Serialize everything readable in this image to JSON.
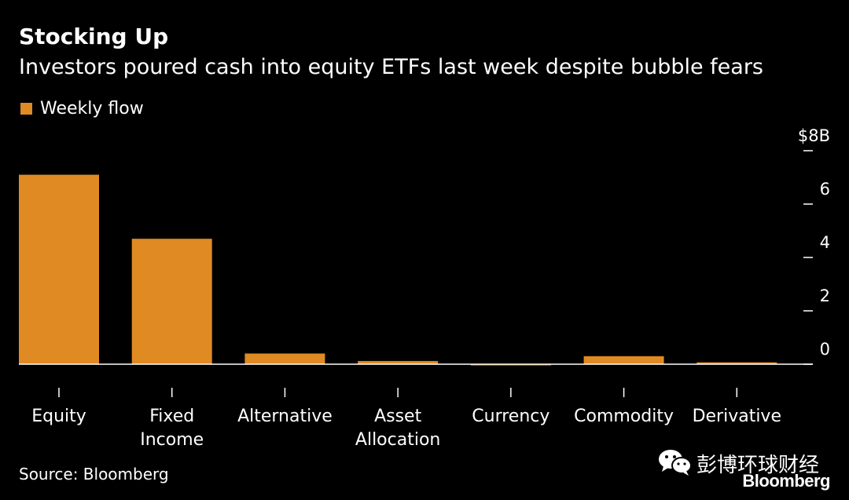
{
  "header": {
    "title": "Stocking Up",
    "subtitle": "Investors poured cash into equity ETFs last week despite bubble fears"
  },
  "legend": {
    "label": "Weekly flow",
    "color": "#E08A24"
  },
  "footer": {
    "source": "Source: Bloomberg",
    "logo_cn": "彭博环球财经",
    "logo_en": "Bloomberg",
    "wechat_icon": "wechat-icon"
  },
  "chart_data": {
    "type": "bar",
    "title": "Stocking Up",
    "subtitle": "Investors poured cash into equity ETFs last week despite bubble fears",
    "categories": [
      "Equity",
      "Fixed Income",
      "Alternative",
      "Asset Allocation",
      "Currency",
      "Commodity",
      "Derivative"
    ],
    "category_label_lines": [
      [
        "Equity"
      ],
      [
        "Fixed",
        "Income"
      ],
      [
        "Alternative"
      ],
      [
        "Asset",
        "Allocation"
      ],
      [
        "Currency"
      ],
      [
        "Commodity"
      ],
      [
        "Derivative"
      ]
    ],
    "series": [
      {
        "name": "Weekly flow",
        "color": "#E08A24",
        "values": [
          7.1,
          4.7,
          0.4,
          0.12,
          -0.03,
          0.3,
          0.07
        ]
      }
    ],
    "ylim": [
      0,
      8
    ],
    "yticks": [
      0,
      2,
      4,
      6,
      8
    ],
    "ytick_labels": [
      "0",
      "2",
      "4",
      "6",
      "$8B"
    ],
    "y_axis_position": "right",
    "grid": false,
    "legend_position": "top-left",
    "source": "Source: Bloomberg"
  }
}
